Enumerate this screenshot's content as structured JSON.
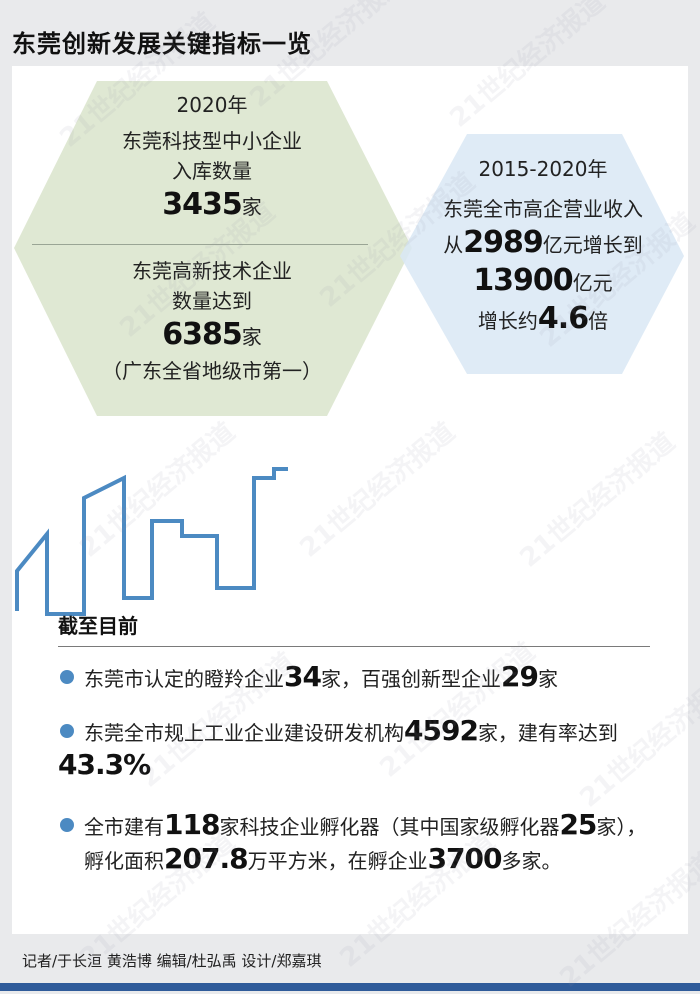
{
  "title": "东莞创新发展关键指标一览",
  "left_hex": {
    "year": "2020年",
    "item1_line1": "东莞科技型中小企业",
    "item1_line2": "入库数量",
    "item1_value": "3435",
    "item1_unit": "家",
    "item2_line1": "东莞高新技术企业",
    "item2_line2": "数量达到",
    "item2_value": "6385",
    "item2_unit": "家",
    "item2_note": "（广东全省地级市第一）",
    "fill": "#dfe8d3"
  },
  "right_hex": {
    "year": "2015-2020年",
    "line1": "东莞全市高企营业收入",
    "line2_prefix": "从",
    "line2_value": "2989",
    "line2_suffix": "亿元增长到",
    "line3_value": "13900",
    "line3_unit": "亿元",
    "line4_prefix": "增长约",
    "line4_value": "4.6",
    "line4_unit": "倍",
    "fill": "#d9e7f4"
  },
  "skyline_color": "#4c8ac2",
  "section": {
    "title": "截至目前",
    "b1": {
      "p1": "东莞市认定的瞪羚企业",
      "v1": "34",
      "p2": "家，百强创新型企业",
      "v2": "29",
      "p3": "家"
    },
    "b2": {
      "p1": "东莞全市规上工业企业建设研发机构",
      "v1": "4592",
      "p2": "家，建有率达到",
      "v2": "43.3%"
    },
    "b3": {
      "p1": "全市建有",
      "v1": "118",
      "p2": "家科技企业孵化器（其中国家级孵化器",
      "v2": "25",
      "p3": "家），",
      "p4": "孵化面积",
      "v3": "207.8",
      "p5": "万平方米，在孵企业",
      "v4": "3700",
      "p6": "多家。"
    }
  },
  "credits": "记者/于长洹 黄浩博  编辑/杜弘禹  设计/郑嘉琪",
  "watermark": "21世纪经济报道",
  "accent": "#2f5b9a"
}
